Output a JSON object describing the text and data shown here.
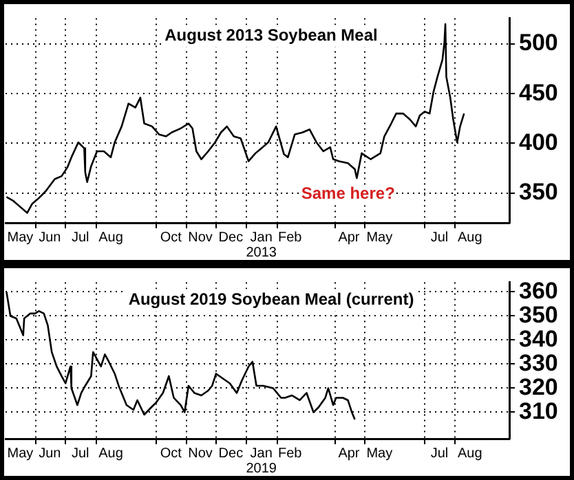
{
  "chart_data": [
    {
      "type": "line",
      "title": "August 2013 Soybean Meal",
      "color": "#000000",
      "grid": true,
      "x": [
        "2012-05-02",
        "2012-05-09",
        "2012-05-16",
        "2012-05-23",
        "2012-05-28",
        "2012-06-04",
        "2012-06-11",
        "2012-06-20",
        "2012-06-27",
        "2012-07-03",
        "2012-07-07",
        "2012-07-14",
        "2012-07-20",
        "2012-07-21",
        "2012-07-23",
        "2012-07-27",
        "2012-08-02",
        "2012-08-09",
        "2012-08-16",
        "2012-08-20",
        "2012-08-27",
        "2012-09-03",
        "2012-09-10",
        "2012-09-15",
        "2012-09-19",
        "2012-09-27",
        "2012-10-04",
        "2012-10-11",
        "2012-10-17",
        "2012-10-26",
        "2012-11-03",
        "2012-11-07",
        "2012-11-11",
        "2012-11-16",
        "2012-11-23",
        "2012-11-30",
        "2012-12-06",
        "2012-12-12",
        "2012-12-19",
        "2012-12-26",
        "2013-01-03",
        "2013-01-10",
        "2013-01-16",
        "2013-01-23",
        "2013-01-31",
        "2013-02-08",
        "2013-02-12",
        "2013-02-19",
        "2013-02-27",
        "2013-03-06",
        "2013-03-13",
        "2013-03-20",
        "2013-03-27",
        "2013-03-30",
        "2013-04-05",
        "2013-04-14",
        "2013-04-21",
        "2013-04-23",
        "2013-04-28",
        "2013-05-07",
        "2013-05-17",
        "2013-05-21",
        "2013-05-28",
        "2013-06-02",
        "2013-06-09",
        "2013-06-16",
        "2013-06-22",
        "2013-06-26",
        "2013-07-01",
        "2013-07-06",
        "2013-07-10",
        "2013-07-14",
        "2013-07-19",
        "2013-07-21",
        "2013-07-22",
        "2013-07-23",
        "2013-07-27",
        "2013-07-30",
        "2013-08-03",
        "2013-08-06",
        "2013-08-10"
      ],
      "values": [
        346,
        342,
        336,
        330,
        339,
        345,
        352,
        364,
        367,
        376,
        386,
        401,
        395,
        371,
        361,
        377,
        392,
        392,
        386,
        401,
        417,
        440,
        436,
        446,
        420,
        417,
        409,
        407,
        411,
        415,
        420,
        415,
        392,
        384,
        392,
        401,
        411,
        417,
        407,
        405,
        382,
        390,
        395,
        401,
        417,
        389,
        386,
        409,
        411,
        414,
        401,
        392,
        396,
        384,
        382,
        380,
        374,
        365,
        390,
        384,
        390,
        407,
        420,
        430,
        430,
        424,
        417,
        428,
        432,
        430,
        452,
        467,
        484,
        501,
        520,
        467,
        446,
        424,
        401,
        417,
        430
      ],
      "xlim": [
        "2012-05-01",
        "2013-09-25"
      ],
      "xticks": [
        {
          "value": "2012-05-16",
          "label": "May"
        },
        {
          "value": "2012-06-01",
          "label": null
        },
        {
          "value": "2012-06-15",
          "label": "Jun"
        },
        {
          "value": "2012-07-01",
          "label": null
        },
        {
          "value": "2012-07-16",
          "label": "Jul"
        },
        {
          "value": "2012-08-01",
          "label": null
        },
        {
          "value": "2012-08-16",
          "label": "Aug"
        },
        {
          "value": "2012-10-01",
          "label": null
        },
        {
          "value": "2012-10-16",
          "label": "Oct"
        },
        {
          "value": "2012-11-01",
          "label": null
        },
        {
          "value": "2012-11-15",
          "label": "Nov"
        },
        {
          "value": "2012-12-01",
          "label": null
        },
        {
          "value": "2012-12-16",
          "label": "Dec"
        },
        {
          "value": "2013-01-01",
          "label": null
        },
        {
          "value": "2013-01-16",
          "label": "Jan\n2013"
        },
        {
          "value": "2013-02-01",
          "label": null
        },
        {
          "value": "2013-02-14",
          "label": "Feb"
        },
        {
          "value": "2013-04-01",
          "label": null
        },
        {
          "value": "2013-04-15",
          "label": "Apr"
        },
        {
          "value": "2013-05-01",
          "label": null
        },
        {
          "value": "2013-05-16",
          "label": "May"
        },
        {
          "value": "2013-07-01",
          "label": null
        },
        {
          "value": "2013-07-16",
          "label": "Jul"
        },
        {
          "value": "2013-08-01",
          "label": null
        },
        {
          "value": "2013-08-16",
          "label": "Aug"
        }
      ],
      "ylim": [
        320,
        526
      ],
      "yticks": [
        350,
        400,
        450,
        500
      ],
      "annotations": [
        "Same here?"
      ]
    },
    {
      "type": "line",
      "title": "August 2019 Soybean Meal (current)",
      "color": "#000000",
      "grid": true,
      "x": [
        "2018-05-02",
        "2018-05-06",
        "2018-05-12",
        "2018-05-16",
        "2018-05-19",
        "2018-05-20",
        "2018-05-26",
        "2018-05-31",
        "2018-06-04",
        "2018-06-09",
        "2018-06-13",
        "2018-06-17",
        "2018-06-22",
        "2018-06-27",
        "2018-07-01",
        "2018-07-06",
        "2018-07-07",
        "2018-07-13",
        "2018-07-17",
        "2018-07-21",
        "2018-07-27",
        "2018-07-29",
        "2018-08-06",
        "2018-08-10",
        "2018-08-14",
        "2018-08-20",
        "2018-08-24",
        "2018-09-01",
        "2018-09-08",
        "2018-09-12",
        "2018-09-19",
        "2018-09-26",
        "2018-10-01",
        "2018-10-08",
        "2018-10-14",
        "2018-10-19",
        "2018-10-26",
        "2018-10-30",
        "2018-11-03",
        "2018-11-09",
        "2018-11-16",
        "2018-11-23",
        "2018-11-27",
        "2018-12-01",
        "2018-12-08",
        "2018-12-15",
        "2018-12-22",
        "2018-12-27",
        "2019-01-03",
        "2019-01-07",
        "2019-01-11",
        "2019-01-18",
        "2019-01-28",
        "2019-02-05",
        "2019-02-09",
        "2019-02-16",
        "2019-02-24",
        "2019-03-03",
        "2019-03-10",
        "2019-03-15",
        "2019-03-22",
        "2019-03-25",
        "2019-03-30",
        "2019-04-02",
        "2019-04-09",
        "2019-04-14",
        "2019-04-18",
        "2019-04-21"
      ],
      "values": [
        360,
        350,
        349,
        345,
        342,
        349,
        351,
        351,
        352,
        351,
        346,
        335,
        329,
        325,
        322,
        329,
        320,
        313,
        318,
        321,
        325,
        335,
        329,
        334,
        331,
        326,
        321,
        313,
        311,
        315,
        309,
        312,
        314,
        318,
        325,
        316,
        313,
        310,
        321,
        318,
        317,
        319,
        321,
        326,
        324,
        322,
        318,
        323,
        329,
        331,
        321,
        321,
        320,
        316,
        316,
        317,
        315,
        318,
        310,
        312,
        316,
        320,
        313,
        316,
        316,
        315,
        310,
        307
      ],
      "xlim": [
        "2018-05-01",
        "2019-09-25"
      ],
      "xticks": [
        {
          "value": "2018-05-16",
          "label": "May"
        },
        {
          "value": "2018-06-01",
          "label": null
        },
        {
          "value": "2018-06-15",
          "label": "Jun"
        },
        {
          "value": "2018-07-01",
          "label": null
        },
        {
          "value": "2018-07-16",
          "label": "Jul"
        },
        {
          "value": "2018-08-01",
          "label": null
        },
        {
          "value": "2018-08-16",
          "label": "Aug"
        },
        {
          "value": "2018-10-01",
          "label": null
        },
        {
          "value": "2018-10-16",
          "label": "Oct"
        },
        {
          "value": "2018-11-01",
          "label": null
        },
        {
          "value": "2018-11-15",
          "label": "Nov"
        },
        {
          "value": "2018-12-01",
          "label": null
        },
        {
          "value": "2018-12-16",
          "label": "Dec"
        },
        {
          "value": "2019-01-01",
          "label": null
        },
        {
          "value": "2019-01-16",
          "label": "Jan\n2019"
        },
        {
          "value": "2019-02-01",
          "label": null
        },
        {
          "value": "2019-02-14",
          "label": "Feb"
        },
        {
          "value": "2019-04-01",
          "label": null
        },
        {
          "value": "2019-04-15",
          "label": "Apr"
        },
        {
          "value": "2019-05-01",
          "label": null
        },
        {
          "value": "2019-05-16",
          "label": "May"
        },
        {
          "value": "2019-07-01",
          "label": null
        },
        {
          "value": "2019-07-16",
          "label": "Jul"
        },
        {
          "value": "2019-08-01",
          "label": null
        },
        {
          "value": "2019-08-16",
          "label": "Aug"
        }
      ],
      "ylim": [
        299,
        364
      ],
      "yticks": [
        310,
        320,
        330,
        340,
        350,
        360
      ]
    }
  ]
}
